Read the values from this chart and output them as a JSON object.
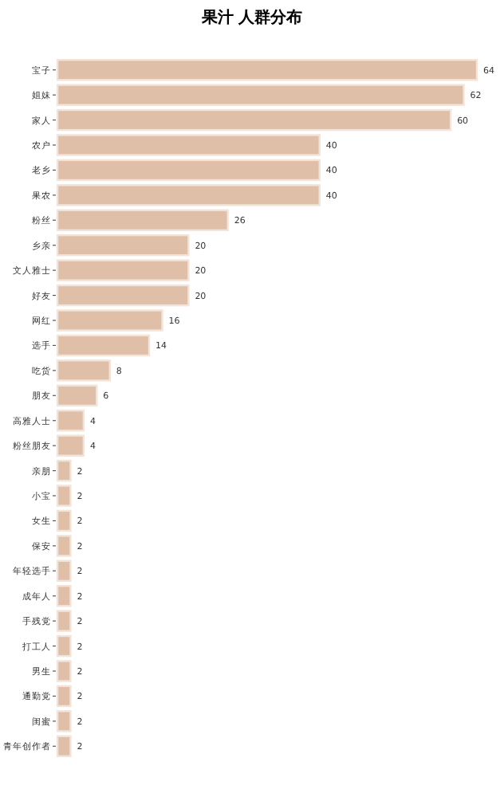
{
  "chart_data": {
    "type": "bar",
    "title": "果汁 人群分布",
    "orientation": "horizontal",
    "categories": [
      "宝子",
      "姐妹",
      "家人",
      "农户",
      "老乡",
      "果农",
      "粉丝",
      "乡亲",
      "文人雅士",
      "好友",
      "网红",
      "选手",
      "吃货",
      "朋友",
      "高雅人士",
      "粉丝朋友",
      "亲朋",
      "小宝",
      "女生",
      "保安",
      "年轻选手",
      "成年人",
      "手残党",
      "打工人",
      "男生",
      "通勤党",
      "闺蜜",
      "青年创作者"
    ],
    "values": [
      64,
      62,
      60,
      40,
      40,
      40,
      26,
      20,
      20,
      20,
      16,
      14,
      8,
      6,
      4,
      4,
      2,
      2,
      2,
      2,
      2,
      2,
      2,
      2,
      2,
      2,
      2,
      2
    ],
    "color": "#e0bfa8",
    "data_labels": true
  }
}
